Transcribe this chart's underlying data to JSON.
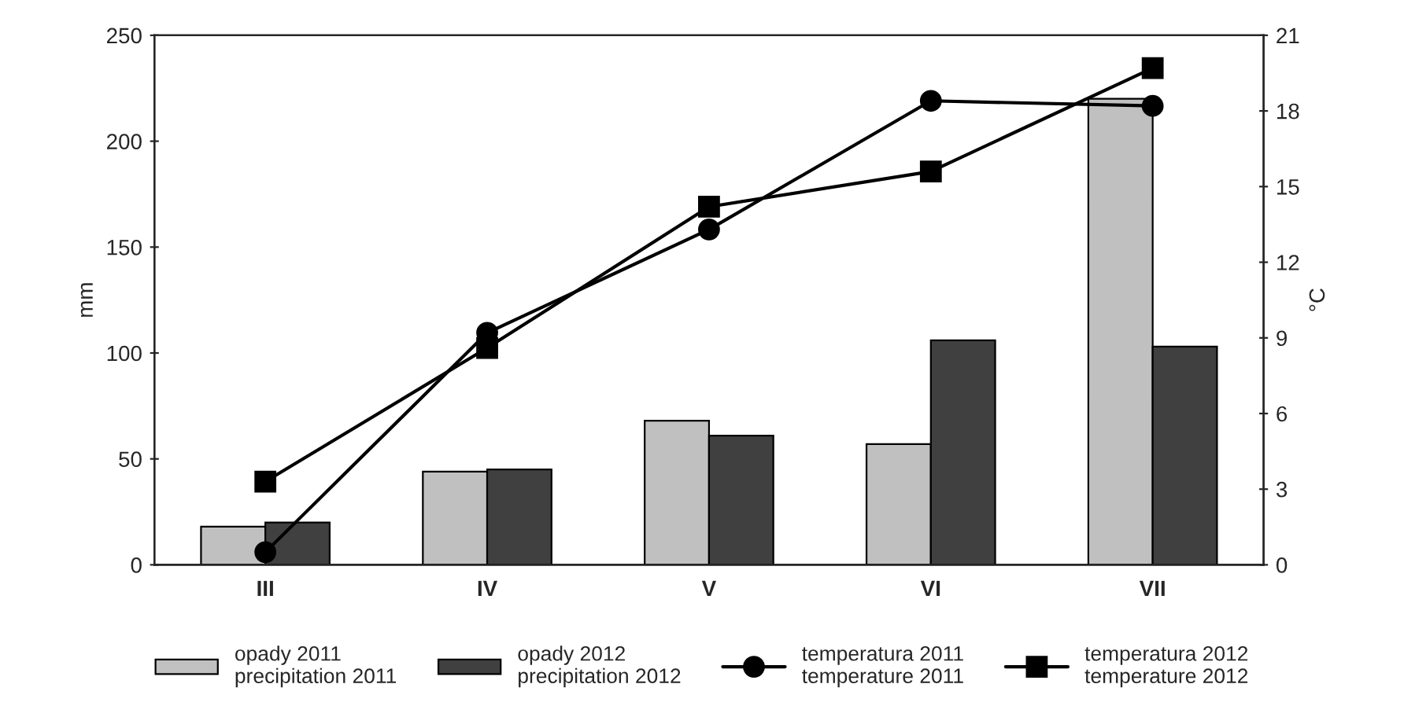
{
  "chart_data": {
    "type": "bar",
    "ylabel": "mm",
    "y2label": "°C",
    "categories": [
      "III",
      "IV",
      "V",
      "VI",
      "VII"
    ],
    "series": [
      {
        "name": "opady 2011\nprecipitation 2011",
        "color": "#c0c0c0",
        "values": [
          18,
          44,
          68,
          57,
          220
        ]
      },
      {
        "name": "opady 2012\nprecipitation 2012",
        "color": "#404040",
        "values": [
          20,
          45,
          61,
          106,
          103
        ]
      },
      {
        "name": "temperatura 2011\ntemperature 2011",
        "type": "line",
        "axis": "y2",
        "marker": "circle",
        "color": "#000000",
        "values": [
          0.5,
          9.2,
          13.3,
          18.4,
          18.2
        ]
      },
      {
        "name": "temperatura 2012\ntemperature 2012",
        "type": "line",
        "axis": "y2",
        "marker": "square",
        "color": "#000000",
        "values": [
          3.3,
          8.6,
          14.2,
          15.6,
          19.7
        ]
      }
    ],
    "ylim": [
      0,
      250
    ],
    "yticks": [
      0,
      50,
      100,
      150,
      200,
      250
    ],
    "y2lim": [
      0,
      21
    ],
    "y2ticks": [
      0,
      3,
      6,
      9,
      12,
      15,
      18,
      21
    ],
    "grid": false,
    "legend": "bottom"
  }
}
